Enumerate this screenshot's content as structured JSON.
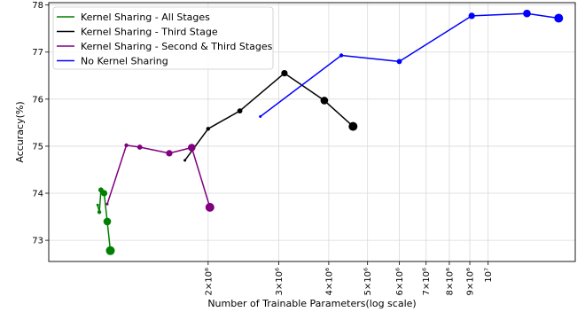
{
  "chart_data": {
    "type": "line",
    "xlabel": "Number of Trainable Parameters(log scale)",
    "ylabel": "Accuracy(%)",
    "x_scale": "log",
    "xlim": [
      800000,
      16500000
    ],
    "ylim": [
      72.55,
      78.05
    ],
    "grid": true,
    "legend_position": "top-left",
    "x_ticks": [
      {
        "value": 2000000,
        "label": "2×10⁶"
      },
      {
        "value": 3000000,
        "label": "3×10⁶"
      },
      {
        "value": 4000000,
        "label": "4×10⁶"
      },
      {
        "value": 5000000,
        "label": "5×10⁶"
      },
      {
        "value": 6000000,
        "label": "6×10⁶"
      },
      {
        "value": 7000000,
        "label": "7×10⁶"
      },
      {
        "value": 8000000,
        "label": "8×10⁶"
      },
      {
        "value": 9000000,
        "label": "9×10⁶"
      },
      {
        "value": 10000000,
        "label": "10⁷"
      }
    ],
    "y_ticks": [
      {
        "value": 73,
        "label": "73"
      },
      {
        "value": 74,
        "label": "74"
      },
      {
        "value": 75,
        "label": "75"
      },
      {
        "value": 76,
        "label": "76"
      },
      {
        "value": 77,
        "label": "77"
      },
      {
        "value": 78,
        "label": "78"
      }
    ],
    "series": [
      {
        "name": "Kernel Sharing - All Stages",
        "color": "#008000",
        "points": [
          {
            "x": 1060000,
            "y": 73.75
          },
          {
            "x": 1070000,
            "y": 73.6
          },
          {
            "x": 1080000,
            "y": 74.07
          },
          {
            "x": 1100000,
            "y": 74.0
          },
          {
            "x": 1120000,
            "y": 73.4
          },
          {
            "x": 1140000,
            "y": 72.78
          }
        ]
      },
      {
        "name": "Kernel Sharing - Third Stage",
        "color": "#000000",
        "points": [
          {
            "x": 1750000,
            "y": 74.7
          },
          {
            "x": 2000000,
            "y": 75.37
          },
          {
            "x": 2400000,
            "y": 75.75
          },
          {
            "x": 3100000,
            "y": 76.55
          },
          {
            "x": 3900000,
            "y": 75.97
          },
          {
            "x": 4600000,
            "y": 75.42
          }
        ]
      },
      {
        "name": "Kernel Sharing - Second & Third Stages",
        "color": "#800080",
        "points": [
          {
            "x": 1120000,
            "y": 73.77
          },
          {
            "x": 1250000,
            "y": 75.02
          },
          {
            "x": 1350000,
            "y": 74.98
          },
          {
            "x": 1600000,
            "y": 74.85
          },
          {
            "x": 1820000,
            "y": 74.97
          },
          {
            "x": 2020000,
            "y": 73.7
          }
        ]
      },
      {
        "name": "No Kernel Sharing",
        "color": "#0000ff",
        "points": [
          {
            "x": 2700000,
            "y": 75.63
          },
          {
            "x": 4300000,
            "y": 76.93
          },
          {
            "x": 6000000,
            "y": 76.8
          },
          {
            "x": 9100000,
            "y": 77.77
          },
          {
            "x": 12500000,
            "y": 77.82
          },
          {
            "x": 15000000,
            "y": 77.72
          }
        ]
      }
    ]
  }
}
